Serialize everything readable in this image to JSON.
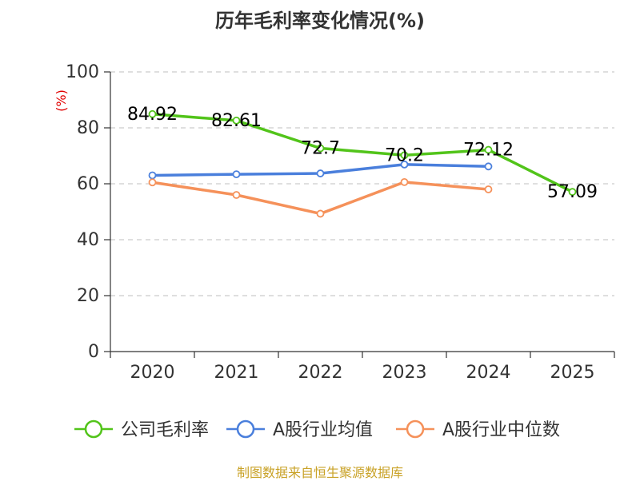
{
  "chart_data": {
    "type": "line",
    "title": "历年毛利率变化情况(%)",
    "ylabel": "(%)",
    "xlabel": "",
    "ylim": [
      0,
      100
    ],
    "yticks": [
      0,
      20,
      40,
      60,
      80,
      100
    ],
    "categories": [
      "2020",
      "2021",
      "2022",
      "2023",
      "2024",
      "2025"
    ],
    "series": [
      {
        "name": "公司毛利率",
        "color": "#52c41a",
        "show_labels": true,
        "values": [
          84.92,
          82.61,
          72.7,
          70.2,
          72.12,
          57.09
        ]
      },
      {
        "name": "A股行业均值",
        "color": "#4a7fdc",
        "show_labels": false,
        "values": [
          63.0,
          63.4,
          63.7,
          66.9,
          66.2,
          null
        ]
      },
      {
        "name": "A股行业中位数",
        "color": "#f5915a",
        "show_labels": false,
        "values": [
          60.5,
          56.0,
          49.3,
          60.6,
          58.0,
          null
        ]
      }
    ],
    "legend": "bottom",
    "grid": true
  },
  "source": "制图数据来自恒生聚源数据库"
}
